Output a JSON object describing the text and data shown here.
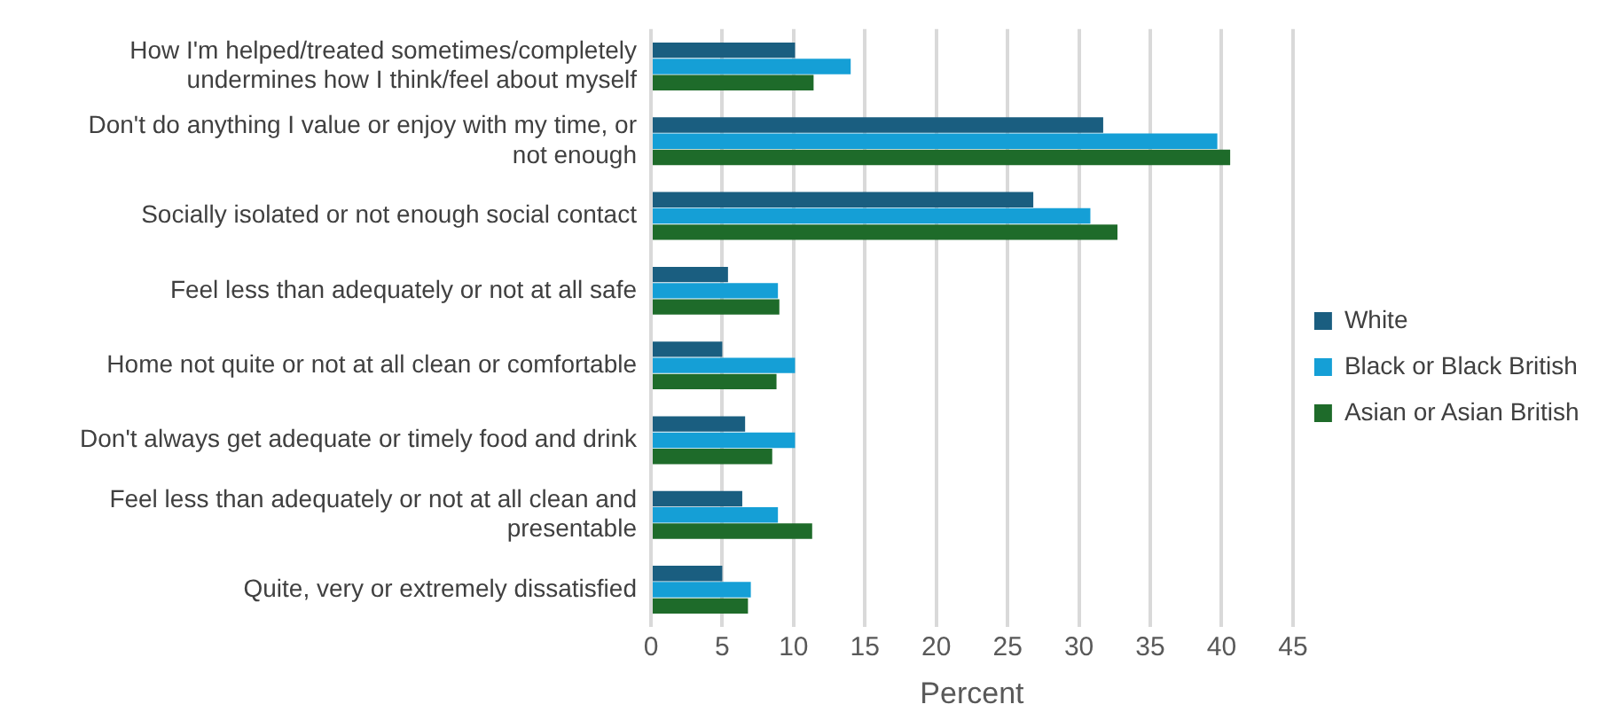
{
  "chart_data": {
    "type": "bar",
    "orientation": "horizontal",
    "xlabel": "Percent",
    "categories": [
      "How I'm helped/treated sometimes/completely undermines how I think/feel about myself",
      "Don't do anything I value or enjoy with my time, or not enough",
      "Socially isolated or not enough social contact",
      "Feel less than adequately or not at all safe",
      "Home not quite or not at all clean or comfortable",
      "Don't always get adequate or timely food and drink",
      "Feel less than adequately or not at all clean and presentable",
      "Quite, very or extremely dissatisfied"
    ],
    "series": [
      {
        "name": "White",
        "color": "#1a5e80",
        "values": [
          10.1,
          31.7,
          26.8,
          5.4,
          5.0,
          6.6,
          6.4,
          5.0
        ]
      },
      {
        "name": "Black or Black British",
        "color": "#159fd6",
        "values": [
          14.0,
          39.7,
          30.8,
          8.9,
          10.1,
          10.1,
          8.9,
          7.0
        ]
      },
      {
        "name": "Asian or Asian British",
        "color": "#1e6b2a",
        "values": [
          11.4,
          40.6,
          32.7,
          9.0,
          8.8,
          8.5,
          11.3,
          6.8
        ]
      }
    ],
    "xlim": [
      0,
      45
    ],
    "xticks": [
      0,
      5,
      10,
      15,
      20,
      25,
      30,
      35,
      40,
      45
    ],
    "grid": "x",
    "legend": "right"
  }
}
